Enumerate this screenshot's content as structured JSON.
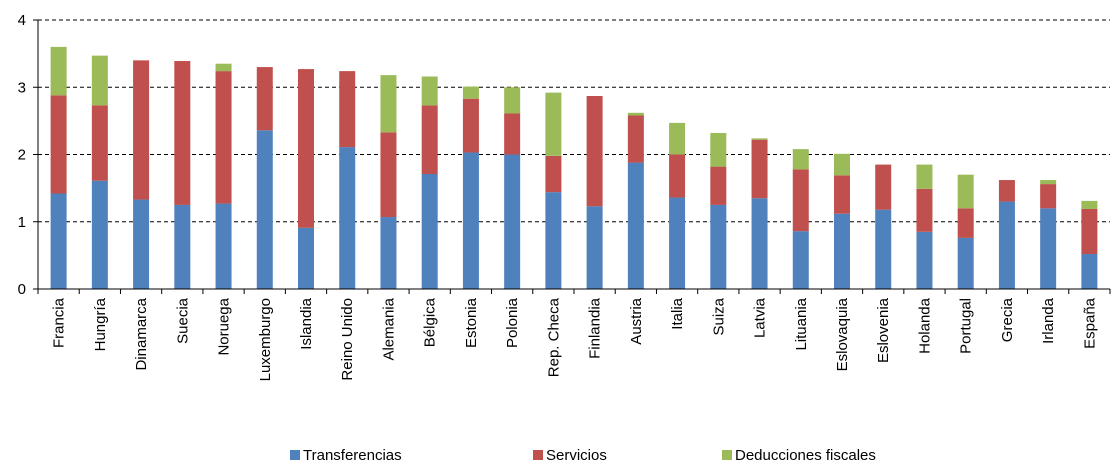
{
  "chart_data": {
    "type": "bar",
    "stacked": true,
    "categories": [
      "Francia",
      "Hungría",
      "Dinamarca",
      "Suecia",
      "Noruega",
      "Luxemburgo",
      "Islandia",
      "Reino Unido",
      "Alemania",
      "Bélgica",
      "Estonia",
      "Polonia",
      "Rep. Checa",
      "Finlandia",
      "Austria",
      "Italia",
      "Suiza",
      "Latvia",
      "Lituania",
      "Eslovaquia",
      "Eslovenia",
      "Holanda",
      "Portugal",
      "Grecia",
      "Irlanda",
      "España"
    ],
    "series": [
      {
        "name": "Transferencias",
        "color": "#4f81bd",
        "values": [
          1.42,
          1.61,
          1.33,
          1.25,
          1.27,
          2.36,
          0.91,
          2.11,
          1.07,
          1.71,
          2.03,
          2.0,
          1.44,
          1.23,
          1.88,
          1.36,
          1.25,
          1.35,
          0.86,
          1.12,
          1.18,
          0.85,
          0.76,
          1.3,
          1.2,
          0.52
        ]
      },
      {
        "name": "Servicios",
        "color": "#c0504d",
        "values": [
          1.46,
          1.12,
          2.07,
          2.14,
          1.97,
          0.94,
          2.36,
          1.13,
          1.26,
          1.02,
          0.8,
          0.61,
          0.54,
          1.64,
          0.7,
          0.64,
          0.57,
          0.87,
          0.92,
          0.57,
          0.67,
          0.64,
          0.44,
          0.32,
          0.36,
          0.67
        ]
      },
      {
        "name": "Deducciones fiscales",
        "color": "#9bbb59",
        "values": [
          0.72,
          0.74,
          0,
          0,
          0.11,
          0,
          0,
          0,
          0.85,
          0.43,
          0.18,
          0.39,
          0.94,
          0,
          0.04,
          0.47,
          0.5,
          0.02,
          0.3,
          0.32,
          0,
          0.36,
          0.5,
          0,
          0.06,
          0.12
        ]
      }
    ],
    "y_ticks": [
      "0",
      "1",
      "2",
      "3",
      "4"
    ],
    "ylim": [
      0,
      4
    ],
    "grid": "horizontal dashed",
    "legend": "bottom"
  }
}
